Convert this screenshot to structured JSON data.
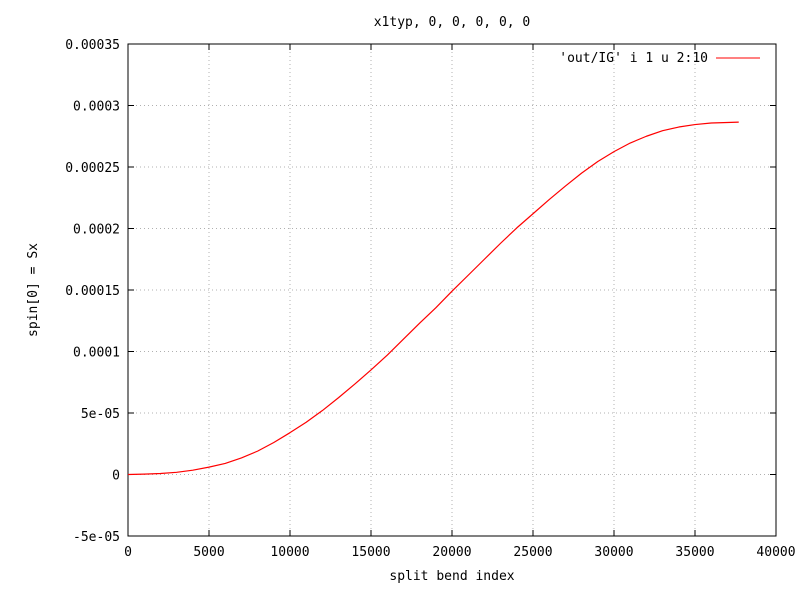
{
  "chart_data": {
    "type": "line",
    "title": "x1typ, 0, 0, 0, 0, 0",
    "xlabel": "split bend index",
    "ylabel": "spin[0] = Sx",
    "xlim": [
      0,
      40000
    ],
    "ylim": [
      -5e-05,
      0.00035
    ],
    "xticks": [
      0,
      5000,
      10000,
      15000,
      20000,
      25000,
      30000,
      35000,
      40000
    ],
    "xtick_labels": [
      "0",
      "5000",
      "10000",
      "15000",
      "20000",
      "25000",
      "30000",
      "35000",
      "40000"
    ],
    "yticks": [
      -5e-05,
      0,
      5e-05,
      0.0001,
      0.00015,
      0.0002,
      0.00025,
      0.0003,
      0.00035
    ],
    "ytick_labels": [
      "-5e-05",
      "0",
      "5e-05",
      "0.0001",
      "0.00015",
      "0.0002",
      "0.00025",
      "0.0003",
      "0.00035"
    ],
    "grid": true,
    "legend_position": "top-right",
    "series": [
      {
        "name": "'out/IG' i 1 u 2:10",
        "color": "#ff0000",
        "x": [
          0,
          1000,
          2000,
          3000,
          4000,
          5000,
          6000,
          7000,
          8000,
          9000,
          10000,
          11000,
          12000,
          13000,
          14000,
          15000,
          16000,
          17000,
          18000,
          19000,
          20000,
          21000,
          22000,
          23000,
          24000,
          25000,
          26000,
          27000,
          28000,
          29000,
          30000,
          31000,
          32000,
          33000,
          34000,
          35000,
          36000,
          37000,
          37700
        ],
        "y": [
          0,
          3e-07,
          8e-07,
          1.8e-06,
          3.5e-06,
          6e-06,
          9e-06,
          1.35e-05,
          1.9e-05,
          2.6e-05,
          3.4e-05,
          4.25e-05,
          5.2e-05,
          6.25e-05,
          7.35e-05,
          8.5e-05,
          9.7e-05,
          0.00011,
          0.000123,
          0.0001355,
          0.000149,
          0.000162,
          0.000175,
          0.000188,
          0.0002005,
          0.000212,
          0.0002235,
          0.0002345,
          0.000245,
          0.0002545,
          0.0002625,
          0.0002695,
          0.000275,
          0.0002795,
          0.0002825,
          0.0002845,
          0.0002858,
          0.0002862,
          0.0002865
        ]
      }
    ]
  }
}
